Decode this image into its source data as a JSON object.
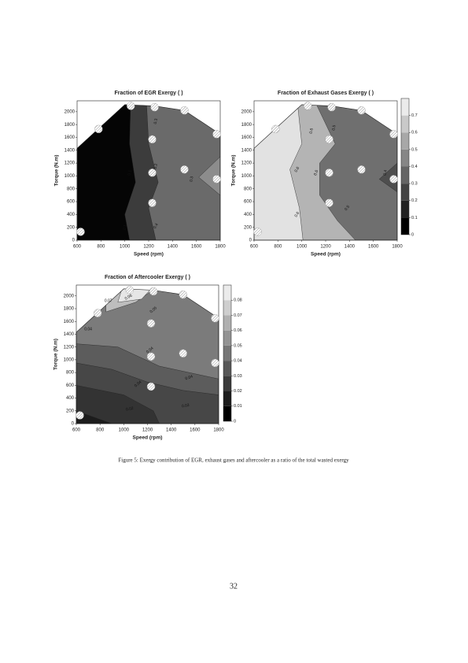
{
  "figures": [
    {
      "title": "Fraction  of  EGR Exergy ( )",
      "x_label": "Speed (rpm)",
      "y_label": "Torque (N.m)",
      "xlim": [
        600,
        1800
      ],
      "ylim": [
        0,
        2170
      ],
      "x_ticks": [
        600,
        800,
        1000,
        1200,
        1400,
        1600,
        1800
      ],
      "y_ticks": [
        0,
        200,
        400,
        600,
        800,
        1000,
        1200,
        1400,
        1600,
        1800,
        2000
      ],
      "contour_labels": [
        "0.1",
        "0.1",
        "0.2",
        "0.3",
        "0.3",
        "0.4"
      ]
    },
    {
      "title": "Fraction of  Exhaust Gases Exergy ( )",
      "x_label": "Speed (rpm)",
      "y_label": "Torque (N.m)",
      "xlim": [
        600,
        1800
      ],
      "ylim": [
        0,
        2170
      ],
      "x_ticks": [
        600,
        800,
        1000,
        1200,
        1400,
        1600,
        1800
      ],
      "y_ticks": [
        0,
        200,
        400,
        600,
        800,
        1000,
        1200,
        1400,
        1600,
        1800,
        2000
      ],
      "colorbar_ticks": [
        0,
        0.1,
        0.2,
        0.3,
        0.4,
        0.5,
        0.6,
        0.7
      ],
      "clim": [
        0,
        0.8
      ],
      "contour_labels": [
        "0.6",
        "0.6",
        "0.6",
        "0.6",
        "0.5",
        "0.5",
        "0.4"
      ]
    },
    {
      "title": "Fraction of  Aftercooler Exergy ( )",
      "x_label": "Speed (rpm)",
      "y_label": "Torque (N.m)",
      "xlim": [
        600,
        1800
      ],
      "ylim": [
        0,
        2170
      ],
      "x_ticks": [
        600,
        800,
        1000,
        1200,
        1400,
        1600,
        1800
      ],
      "y_ticks": [
        0,
        200,
        400,
        600,
        800,
        1000,
        1200,
        1400,
        1600,
        1800,
        2000
      ],
      "colorbar_ticks": [
        0,
        0.01,
        0.02,
        0.03,
        0.04,
        0.05,
        0.06,
        0.07,
        0.08
      ],
      "clim": [
        0,
        0.09
      ],
      "contour_labels": [
        "0.07",
        "0.06",
        "0.05",
        "0.04",
        "0.04",
        "0.04",
        "0.04",
        "0.03",
        "0.02"
      ]
    }
  ],
  "caption": "Figure 5: Exergy contribution of EGR, exhaust gases and aftercooler as a ratio of the total wasted exergy",
  "page_number": "32"
}
